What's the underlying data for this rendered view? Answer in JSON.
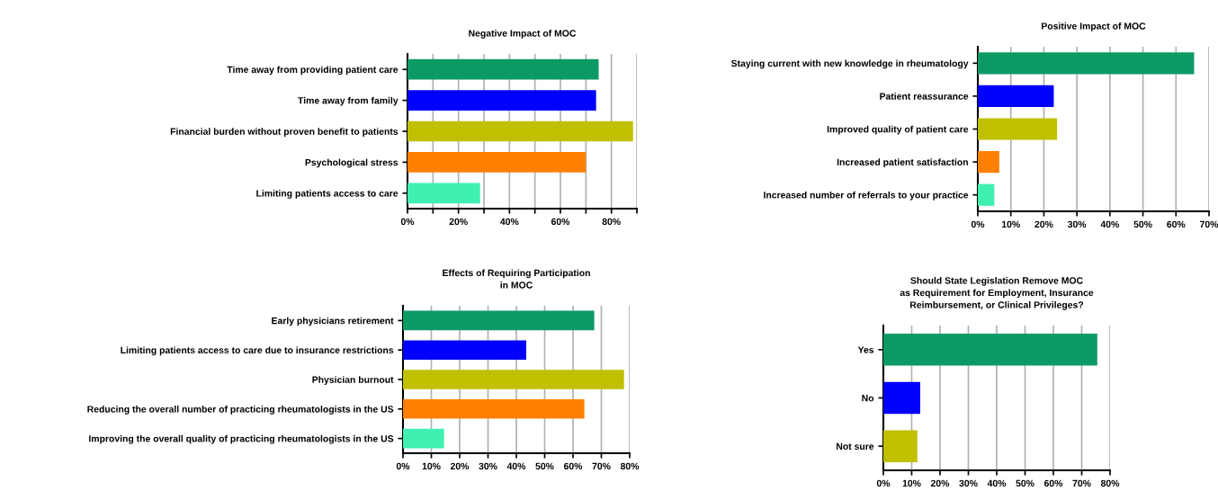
{
  "chart_data": [
    {
      "type": "bar",
      "orientation": "horizontal",
      "title": "Negative Impact of MOC",
      "categories": [
        "Time away from providing patient care",
        "Time away from family",
        "Financial burden without proven benefit to patients",
        "Psychological stress",
        "Limiting patients access to care"
      ],
      "values": [
        75,
        74,
        88.5,
        70,
        28.5
      ],
      "colors": [
        "#0c9a64",
        "#0000ff",
        "#c0c000",
        "#ff8000",
        "#40f0b0"
      ],
      "xlim": [
        0,
        90
      ],
      "xticks": [
        {
          "value": 0,
          "label": "0%"
        },
        {
          "value": 10,
          "label": null
        },
        {
          "value": 20,
          "label": "20%"
        },
        {
          "value": 30,
          "label": null
        },
        {
          "value": 40,
          "label": "40%"
        },
        {
          "value": 50,
          "label": null
        },
        {
          "value": 60,
          "label": "60%"
        },
        {
          "value": 70,
          "label": null
        },
        {
          "value": 80,
          "label": "80%"
        },
        {
          "value": 90,
          "label": null
        }
      ],
      "grid": "x"
    },
    {
      "type": "bar",
      "orientation": "horizontal",
      "title": "Positive Impact of MOC",
      "categories": [
        "Staying current with new knowledge in rheumatology",
        "Patient reassurance",
        "Improved quality of patient care",
        "Increased patient satisfaction",
        "Increased number of referrals to your practice"
      ],
      "values": [
        65.5,
        23,
        24,
        6.5,
        5
      ],
      "colors": [
        "#0c9a64",
        "#0000ff",
        "#c0c000",
        "#ff8000",
        "#40f0b0"
      ],
      "xlim": [
        0,
        70
      ],
      "xticks": [
        {
          "value": 0,
          "label": "0%"
        },
        {
          "value": 10,
          "label": "10%"
        },
        {
          "value": 20,
          "label": "20%"
        },
        {
          "value": 30,
          "label": "30%"
        },
        {
          "value": 40,
          "label": "40%"
        },
        {
          "value": 50,
          "label": "50%"
        },
        {
          "value": 60,
          "label": "60%"
        },
        {
          "value": 70,
          "label": "70%"
        }
      ],
      "grid": "x"
    },
    {
      "type": "bar",
      "orientation": "horizontal",
      "title": "Effects of Requiring Participation\nin MOC",
      "categories": [
        "Early physicians retirement",
        "Limiting patients access to care due to insurance restrictions",
        "Physician burnout",
        "Reducing the overall number of practicing rheumatologists in the US",
        "Improving the overall quality of practicing rheumatologists in the US"
      ],
      "values": [
        67.5,
        43.5,
        78,
        64,
        14.5
      ],
      "colors": [
        "#0c9a64",
        "#0000ff",
        "#c0c000",
        "#ff8000",
        "#40f0b0"
      ],
      "xlim": [
        0,
        80
      ],
      "xticks": [
        {
          "value": 0,
          "label": "0%"
        },
        {
          "value": 10,
          "label": "10%"
        },
        {
          "value": 20,
          "label": "20%"
        },
        {
          "value": 30,
          "label": "30%"
        },
        {
          "value": 40,
          "label": "40%"
        },
        {
          "value": 50,
          "label": "50%"
        },
        {
          "value": 60,
          "label": "60%"
        },
        {
          "value": 70,
          "label": "70%"
        },
        {
          "value": 80,
          "label": "80%"
        }
      ],
      "grid": "x"
    },
    {
      "type": "bar",
      "orientation": "horizontal",
      "title": "Should State Legislation Remove MOC\nas Requirement for Employment, Insurance\nReimbursement, or Clinical Privileges?",
      "categories": [
        "Yes",
        "No",
        "Not sure"
      ],
      "values": [
        75.5,
        13,
        12
      ],
      "colors": [
        "#0c9a64",
        "#0000ff",
        "#c0c000"
      ],
      "xlim": [
        0,
        80
      ],
      "xticks": [
        {
          "value": 0,
          "label": "0%"
        },
        {
          "value": 10,
          "label": "10%"
        },
        {
          "value": 20,
          "label": "20%"
        },
        {
          "value": 30,
          "label": "30%"
        },
        {
          "value": 40,
          "label": "40%"
        },
        {
          "value": 50,
          "label": "50%"
        },
        {
          "value": 60,
          "label": "60%"
        },
        {
          "value": 70,
          "label": "70%"
        },
        {
          "value": 80,
          "label": "80%"
        }
      ],
      "grid": "x"
    }
  ]
}
